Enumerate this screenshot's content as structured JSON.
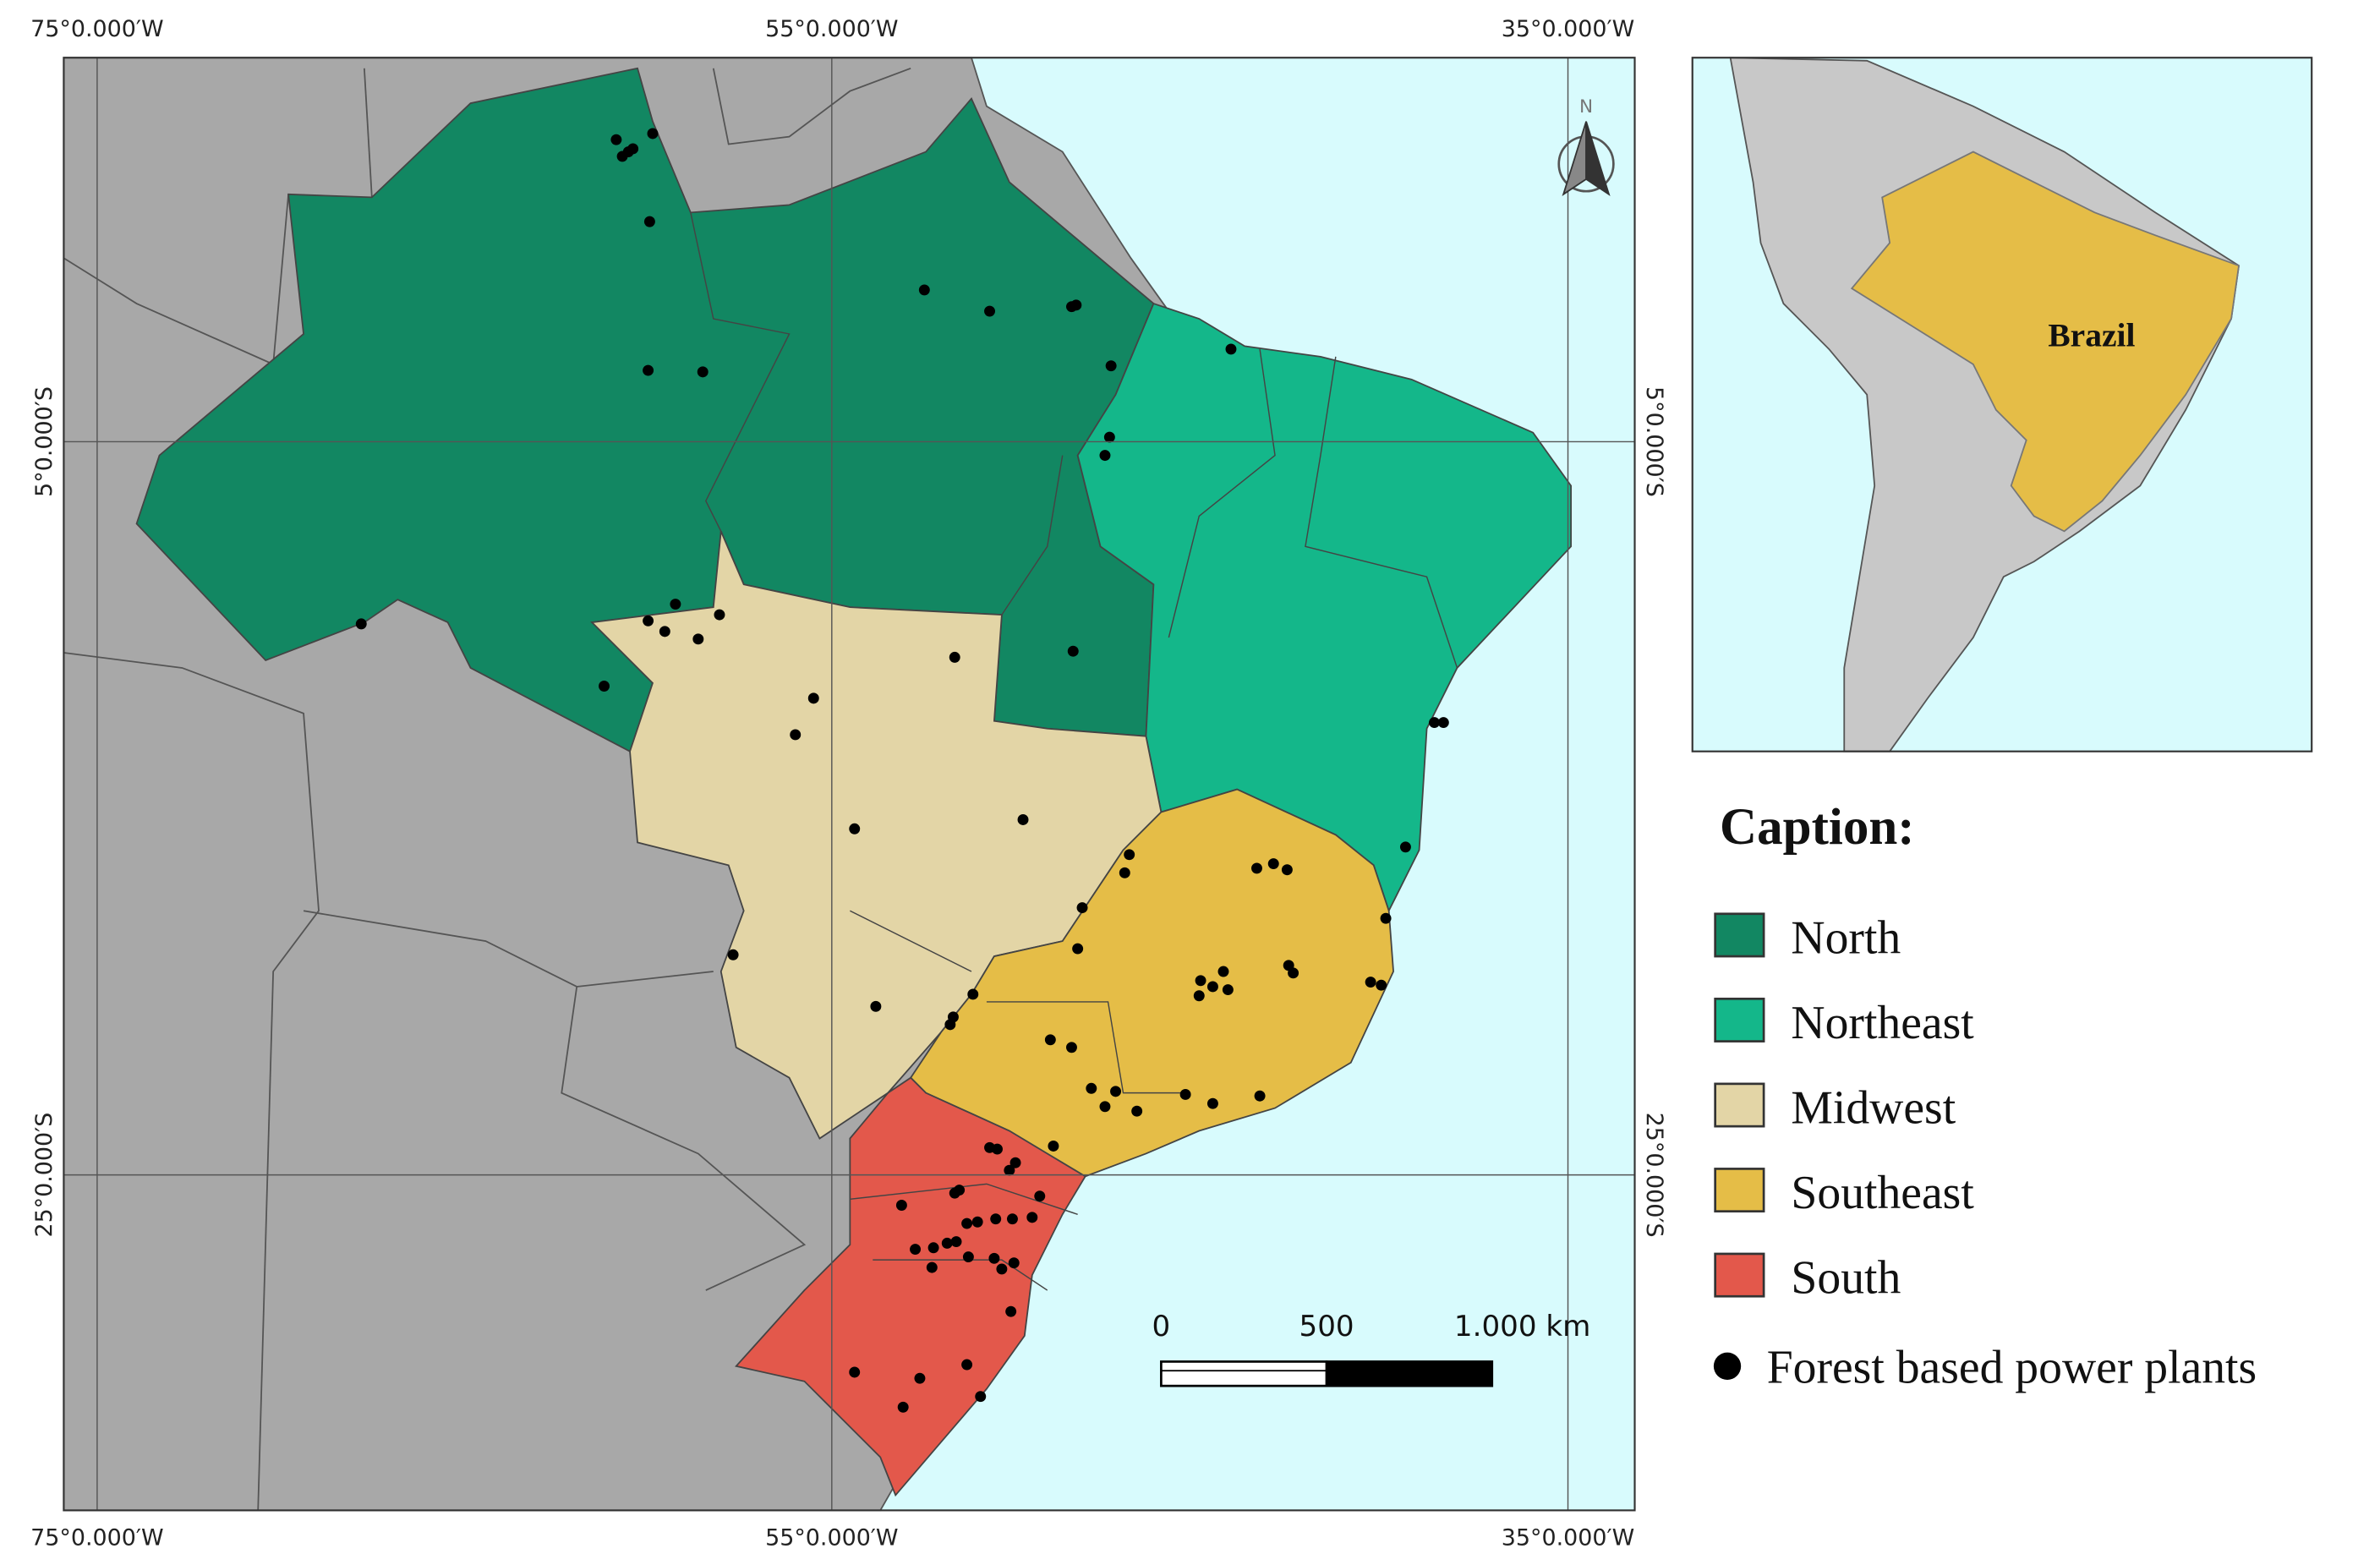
{
  "map": {
    "graticule_labels": {
      "top": [
        "75°0.000′W",
        "55°0.000′W",
        "35°0.000′W"
      ],
      "bottom": [
        "75°0.000′W",
        "55°0.000′W",
        "35°0.000′W"
      ],
      "left": [
        "5°0.000′S",
        "25°0.000′S"
      ],
      "right": [
        "5°0.000′S",
        "25°0.000′S"
      ]
    },
    "north_arrow": "N",
    "scale_bar": [
      "0",
      "500",
      "1.000 km"
    ]
  },
  "inset": {
    "label": "Brazil"
  },
  "caption": {
    "title": "Caption:",
    "items": [
      {
        "label": "North",
        "color": "#128762"
      },
      {
        "label": "Northeast",
        "color": "#14b78a"
      },
      {
        "label": "Midwest",
        "color": "#e3d5a6"
      },
      {
        "label": "Southeast",
        "color": "#e5bd47"
      },
      {
        "label": "South",
        "color": "#e3584b"
      }
    ],
    "point_label": "Forest based power plants"
  }
}
